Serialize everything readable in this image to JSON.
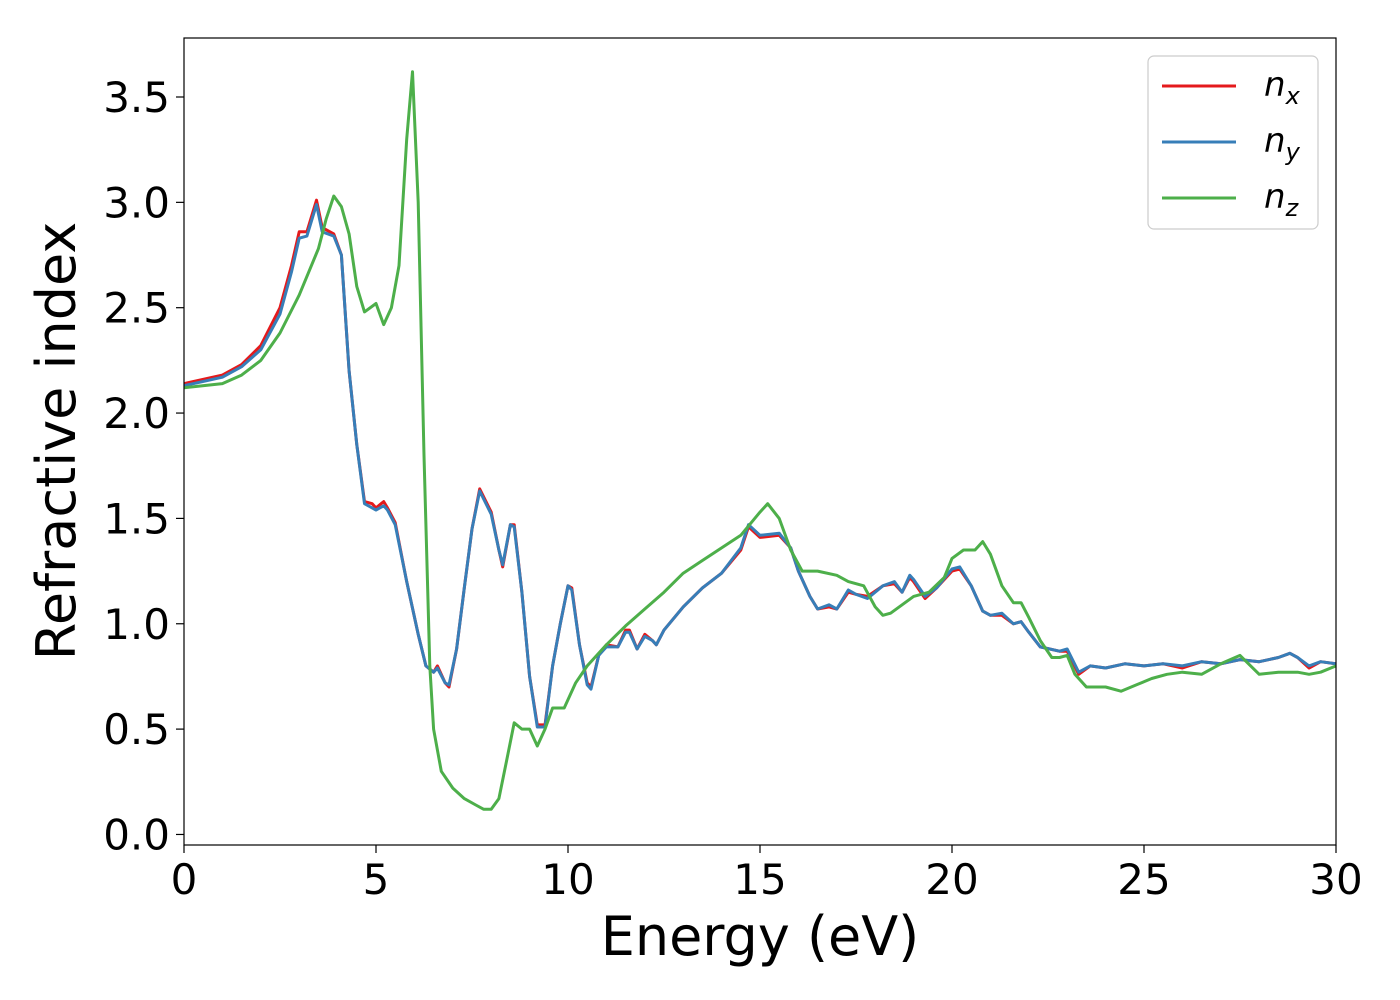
{
  "chart_data": {
    "type": "line",
    "xlabel": "Energy (eV)",
    "ylabel": "Refractive index",
    "xlim": [
      0,
      30
    ],
    "ylim": [
      -0.05,
      3.78
    ],
    "xticks": [
      0,
      5,
      10,
      15,
      20,
      25,
      30
    ],
    "yticks": [
      0.0,
      0.5,
      1.0,
      1.5,
      2.0,
      2.5,
      3.0,
      3.5
    ],
    "xtick_labels": [
      "0",
      "5",
      "10",
      "15",
      "20",
      "25",
      "30"
    ],
    "ytick_labels": [
      "0.0",
      "0.5",
      "1.0",
      "1.5",
      "2.0",
      "2.5",
      "3.0",
      "3.5"
    ],
    "grid": false,
    "legend_position": "top-right",
    "series": [
      {
        "name": "n_x",
        "legend_base": "n",
        "legend_sub": "x",
        "color": "#e41a1c",
        "points": [
          [
            0,
            2.14
          ],
          [
            1,
            2.18
          ],
          [
            1.5,
            2.23
          ],
          [
            2,
            2.32
          ],
          [
            2.5,
            2.5
          ],
          [
            2.8,
            2.7
          ],
          [
            3.0,
            2.86
          ],
          [
            3.2,
            2.86
          ],
          [
            3.45,
            3.01
          ],
          [
            3.6,
            2.88
          ],
          [
            3.9,
            2.85
          ],
          [
            4.1,
            2.75
          ],
          [
            4.3,
            2.2
          ],
          [
            4.5,
            1.85
          ],
          [
            4.7,
            1.58
          ],
          [
            4.9,
            1.57
          ],
          [
            5.0,
            1.55
          ],
          [
            5.2,
            1.58
          ],
          [
            5.3,
            1.55
          ],
          [
            5.5,
            1.48
          ],
          [
            5.8,
            1.2
          ],
          [
            6.1,
            0.95
          ],
          [
            6.3,
            0.8
          ],
          [
            6.5,
            0.77
          ],
          [
            6.6,
            0.8
          ],
          [
            6.8,
            0.72
          ],
          [
            6.9,
            0.7
          ],
          [
            7.1,
            0.88
          ],
          [
            7.3,
            1.17
          ],
          [
            7.5,
            1.45
          ],
          [
            7.7,
            1.64
          ],
          [
            8.0,
            1.53
          ],
          [
            8.2,
            1.35
          ],
          [
            8.3,
            1.27
          ],
          [
            8.5,
            1.47
          ],
          [
            8.6,
            1.47
          ],
          [
            8.8,
            1.15
          ],
          [
            9.0,
            0.75
          ],
          [
            9.2,
            0.52
          ],
          [
            9.4,
            0.52
          ],
          [
            9.6,
            0.8
          ],
          [
            9.8,
            1.0
          ],
          [
            10.0,
            1.18
          ],
          [
            10.1,
            1.17
          ],
          [
            10.3,
            0.9
          ],
          [
            10.5,
            0.72
          ],
          [
            10.6,
            0.7
          ],
          [
            10.8,
            0.85
          ],
          [
            11.0,
            0.9
          ],
          [
            11.3,
            0.89
          ],
          [
            11.5,
            0.97
          ],
          [
            11.6,
            0.97
          ],
          [
            11.8,
            0.88
          ],
          [
            12.0,
            0.95
          ],
          [
            12.2,
            0.92
          ],
          [
            12.3,
            0.9
          ],
          [
            12.5,
            0.97
          ],
          [
            13.0,
            1.08
          ],
          [
            13.5,
            1.17
          ],
          [
            14.0,
            1.24
          ],
          [
            14.5,
            1.35
          ],
          [
            14.7,
            1.46
          ],
          [
            15.0,
            1.41
          ],
          [
            15.5,
            1.42
          ],
          [
            15.8,
            1.36
          ],
          [
            16.0,
            1.25
          ],
          [
            16.3,
            1.13
          ],
          [
            16.5,
            1.07
          ],
          [
            16.8,
            1.08
          ],
          [
            17.0,
            1.07
          ],
          [
            17.3,
            1.15
          ],
          [
            17.5,
            1.14
          ],
          [
            17.8,
            1.13
          ],
          [
            18.2,
            1.18
          ],
          [
            18.5,
            1.19
          ],
          [
            18.7,
            1.15
          ],
          [
            18.9,
            1.22
          ],
          [
            19.0,
            1.2
          ],
          [
            19.3,
            1.12
          ],
          [
            19.6,
            1.17
          ],
          [
            20.0,
            1.25
          ],
          [
            20.2,
            1.26
          ],
          [
            20.5,
            1.18
          ],
          [
            20.8,
            1.06
          ],
          [
            21.0,
            1.04
          ],
          [
            21.3,
            1.04
          ],
          [
            21.6,
            1.0
          ],
          [
            21.8,
            1.01
          ],
          [
            22.0,
            0.96
          ],
          [
            22.3,
            0.89
          ],
          [
            22.8,
            0.87
          ],
          [
            23.0,
            0.87
          ],
          [
            23.3,
            0.76
          ],
          [
            23.6,
            0.8
          ],
          [
            24.0,
            0.79
          ],
          [
            24.5,
            0.81
          ],
          [
            25.0,
            0.8
          ],
          [
            25.5,
            0.81
          ],
          [
            26.0,
            0.79
          ],
          [
            26.5,
            0.82
          ],
          [
            27.0,
            0.81
          ],
          [
            27.5,
            0.83
          ],
          [
            28.0,
            0.82
          ],
          [
            28.5,
            0.84
          ],
          [
            28.8,
            0.86
          ],
          [
            29.0,
            0.84
          ],
          [
            29.3,
            0.79
          ],
          [
            29.6,
            0.82
          ],
          [
            30,
            0.81
          ]
        ]
      },
      {
        "name": "n_y",
        "legend_base": "n",
        "legend_sub": "y",
        "color": "#377eb8",
        "points": [
          [
            0,
            2.13
          ],
          [
            1,
            2.17
          ],
          [
            1.5,
            2.22
          ],
          [
            2,
            2.3
          ],
          [
            2.5,
            2.47
          ],
          [
            2.8,
            2.67
          ],
          [
            3.0,
            2.83
          ],
          [
            3.2,
            2.84
          ],
          [
            3.45,
            2.99
          ],
          [
            3.6,
            2.86
          ],
          [
            3.9,
            2.84
          ],
          [
            4.1,
            2.75
          ],
          [
            4.3,
            2.2
          ],
          [
            4.5,
            1.85
          ],
          [
            4.7,
            1.57
          ],
          [
            4.9,
            1.55
          ],
          [
            5.0,
            1.54
          ],
          [
            5.2,
            1.56
          ],
          [
            5.3,
            1.54
          ],
          [
            5.5,
            1.47
          ],
          [
            5.8,
            1.2
          ],
          [
            6.1,
            0.95
          ],
          [
            6.3,
            0.8
          ],
          [
            6.5,
            0.77
          ],
          [
            6.6,
            0.79
          ],
          [
            6.8,
            0.72
          ],
          [
            6.9,
            0.71
          ],
          [
            7.1,
            0.88
          ],
          [
            7.3,
            1.17
          ],
          [
            7.5,
            1.45
          ],
          [
            7.7,
            1.63
          ],
          [
            8.0,
            1.52
          ],
          [
            8.2,
            1.35
          ],
          [
            8.3,
            1.28
          ],
          [
            8.5,
            1.47
          ],
          [
            8.6,
            1.46
          ],
          [
            8.8,
            1.15
          ],
          [
            9.0,
            0.75
          ],
          [
            9.2,
            0.51
          ],
          [
            9.4,
            0.51
          ],
          [
            9.6,
            0.8
          ],
          [
            9.8,
            1.0
          ],
          [
            10.0,
            1.18
          ],
          [
            10.1,
            1.16
          ],
          [
            10.3,
            0.9
          ],
          [
            10.5,
            0.71
          ],
          [
            10.6,
            0.69
          ],
          [
            10.8,
            0.85
          ],
          [
            11.0,
            0.89
          ],
          [
            11.3,
            0.89
          ],
          [
            11.5,
            0.96
          ],
          [
            11.6,
            0.96
          ],
          [
            11.8,
            0.88
          ],
          [
            12.0,
            0.94
          ],
          [
            12.2,
            0.92
          ],
          [
            12.3,
            0.9
          ],
          [
            12.5,
            0.97
          ],
          [
            13.0,
            1.08
          ],
          [
            13.5,
            1.17
          ],
          [
            14.0,
            1.24
          ],
          [
            14.5,
            1.36
          ],
          [
            14.7,
            1.47
          ],
          [
            15.0,
            1.42
          ],
          [
            15.5,
            1.43
          ],
          [
            15.8,
            1.36
          ],
          [
            16.0,
            1.25
          ],
          [
            16.3,
            1.13
          ],
          [
            16.5,
            1.07
          ],
          [
            16.8,
            1.09
          ],
          [
            17.0,
            1.07
          ],
          [
            17.3,
            1.16
          ],
          [
            17.5,
            1.14
          ],
          [
            17.8,
            1.12
          ],
          [
            18.2,
            1.18
          ],
          [
            18.5,
            1.2
          ],
          [
            18.7,
            1.15
          ],
          [
            18.9,
            1.23
          ],
          [
            19.0,
            1.21
          ],
          [
            19.3,
            1.13
          ],
          [
            19.6,
            1.17
          ],
          [
            20.0,
            1.26
          ],
          [
            20.2,
            1.27
          ],
          [
            20.5,
            1.18
          ],
          [
            20.8,
            1.06
          ],
          [
            21.0,
            1.04
          ],
          [
            21.3,
            1.05
          ],
          [
            21.6,
            1.0
          ],
          [
            21.8,
            1.01
          ],
          [
            22.0,
            0.96
          ],
          [
            22.3,
            0.89
          ],
          [
            22.8,
            0.87
          ],
          [
            23.0,
            0.88
          ],
          [
            23.3,
            0.77
          ],
          [
            23.6,
            0.8
          ],
          [
            24.0,
            0.79
          ],
          [
            24.5,
            0.81
          ],
          [
            25.0,
            0.8
          ],
          [
            25.5,
            0.81
          ],
          [
            26.0,
            0.8
          ],
          [
            26.5,
            0.82
          ],
          [
            27.0,
            0.81
          ],
          [
            27.5,
            0.83
          ],
          [
            28.0,
            0.82
          ],
          [
            28.5,
            0.84
          ],
          [
            28.8,
            0.86
          ],
          [
            29.0,
            0.84
          ],
          [
            29.3,
            0.8
          ],
          [
            29.6,
            0.82
          ],
          [
            30,
            0.81
          ]
        ]
      },
      {
        "name": "n_z",
        "legend_base": "n",
        "legend_sub": "z",
        "color": "#4daf4a",
        "points": [
          [
            0,
            2.12
          ],
          [
            1,
            2.14
          ],
          [
            1.5,
            2.18
          ],
          [
            2,
            2.25
          ],
          [
            2.5,
            2.38
          ],
          [
            3.0,
            2.56
          ],
          [
            3.5,
            2.78
          ],
          [
            3.7,
            2.92
          ],
          [
            3.9,
            3.03
          ],
          [
            4.1,
            2.98
          ],
          [
            4.3,
            2.85
          ],
          [
            4.5,
            2.6
          ],
          [
            4.7,
            2.48
          ],
          [
            5.0,
            2.52
          ],
          [
            5.2,
            2.42
          ],
          [
            5.4,
            2.5
          ],
          [
            5.6,
            2.7
          ],
          [
            5.8,
            3.3
          ],
          [
            5.95,
            3.62
          ],
          [
            6.1,
            3.0
          ],
          [
            6.25,
            1.8
          ],
          [
            6.4,
            0.8
          ],
          [
            6.5,
            0.5
          ],
          [
            6.7,
            0.3
          ],
          [
            7.0,
            0.22
          ],
          [
            7.3,
            0.17
          ],
          [
            7.6,
            0.14
          ],
          [
            7.8,
            0.12
          ],
          [
            8.0,
            0.12
          ],
          [
            8.2,
            0.17
          ],
          [
            8.4,
            0.35
          ],
          [
            8.6,
            0.53
          ],
          [
            8.8,
            0.5
          ],
          [
            9.0,
            0.5
          ],
          [
            9.2,
            0.42
          ],
          [
            9.4,
            0.5
          ],
          [
            9.6,
            0.6
          ],
          [
            9.9,
            0.6
          ],
          [
            10.2,
            0.72
          ],
          [
            10.5,
            0.8
          ],
          [
            11.0,
            0.9
          ],
          [
            11.5,
            0.99
          ],
          [
            12.0,
            1.07
          ],
          [
            12.5,
            1.15
          ],
          [
            13.0,
            1.24
          ],
          [
            13.5,
            1.3
          ],
          [
            14.0,
            1.36
          ],
          [
            14.5,
            1.42
          ],
          [
            15.0,
            1.53
          ],
          [
            15.2,
            1.57
          ],
          [
            15.5,
            1.5
          ],
          [
            15.8,
            1.35
          ],
          [
            16.1,
            1.25
          ],
          [
            16.5,
            1.25
          ],
          [
            17.0,
            1.23
          ],
          [
            17.3,
            1.2
          ],
          [
            17.7,
            1.18
          ],
          [
            18.0,
            1.08
          ],
          [
            18.2,
            1.04
          ],
          [
            18.4,
            1.05
          ],
          [
            18.7,
            1.09
          ],
          [
            19.0,
            1.13
          ],
          [
            19.4,
            1.15
          ],
          [
            19.8,
            1.22
          ],
          [
            20.0,
            1.31
          ],
          [
            20.3,
            1.35
          ],
          [
            20.6,
            1.35
          ],
          [
            20.8,
            1.39
          ],
          [
            21.0,
            1.33
          ],
          [
            21.3,
            1.18
          ],
          [
            21.6,
            1.1
          ],
          [
            21.8,
            1.1
          ],
          [
            22.0,
            1.03
          ],
          [
            22.3,
            0.92
          ],
          [
            22.6,
            0.84
          ],
          [
            22.8,
            0.84
          ],
          [
            23.0,
            0.85
          ],
          [
            23.2,
            0.76
          ],
          [
            23.5,
            0.7
          ],
          [
            24.0,
            0.7
          ],
          [
            24.4,
            0.68
          ],
          [
            24.8,
            0.71
          ],
          [
            25.2,
            0.74
          ],
          [
            25.6,
            0.76
          ],
          [
            26.0,
            0.77
          ],
          [
            26.5,
            0.76
          ],
          [
            27.0,
            0.81
          ],
          [
            27.5,
            0.85
          ],
          [
            28.0,
            0.76
          ],
          [
            28.5,
            0.77
          ],
          [
            29.0,
            0.77
          ],
          [
            29.3,
            0.76
          ],
          [
            29.6,
            0.77
          ],
          [
            30,
            0.8
          ]
        ]
      }
    ]
  }
}
